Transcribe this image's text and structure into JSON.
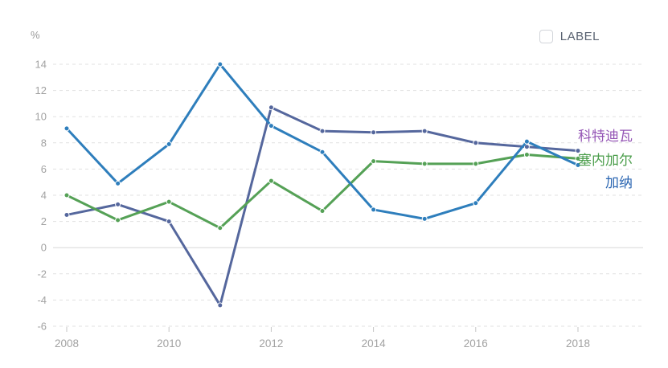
{
  "unit_label": "%",
  "legend_toggle": {
    "label": "LABEL",
    "checked": false
  },
  "chart_data": {
    "type": "line",
    "x": [
      2008,
      2009,
      2010,
      2011,
      2012,
      2013,
      2014,
      2015,
      2016,
      2017,
      2018
    ],
    "x_tick_labels": [
      "2008",
      "2010",
      "2012",
      "2014",
      "2016",
      "2018"
    ],
    "series": [
      {
        "name": "科特迪瓦",
        "slug": "cote-divoire",
        "color": "#55679d",
        "label_color": "#9455b5",
        "values": [
          2.5,
          3.3,
          2.0,
          -4.4,
          10.7,
          8.9,
          8.8,
          8.9,
          8.0,
          7.7,
          7.4
        ]
      },
      {
        "name": "塞内加尔",
        "slug": "senegal",
        "color": "#55a156",
        "label_color": "#4a9d4a",
        "values": [
          4.0,
          2.1,
          3.5,
          1.5,
          5.1,
          2.8,
          6.6,
          6.4,
          6.4,
          7.1,
          6.8
        ]
      },
      {
        "name": "加纳",
        "slug": "ghana",
        "color": "#2e7ebc",
        "label_color": "#2b66b2",
        "values": [
          9.1,
          4.9,
          7.9,
          14.0,
          9.3,
          7.3,
          2.9,
          2.2,
          3.4,
          8.1,
          6.3
        ]
      }
    ],
    "ylabel": "%",
    "xlabel": "",
    "ylim": [
      -6,
      14
    ],
    "y_ticks": [
      14,
      12,
      10,
      8,
      6,
      4,
      2,
      0,
      -2,
      -4,
      -6
    ],
    "grid": "dashed-horizontal",
    "zero_line": "solid",
    "legend_position": "right-end-labels",
    "axis_text_color": "#a2a2a2",
    "grid_color": "#e1e1e1",
    "zero_line_color": "#d9d9d9",
    "tick_color": "#c5c5c5"
  }
}
